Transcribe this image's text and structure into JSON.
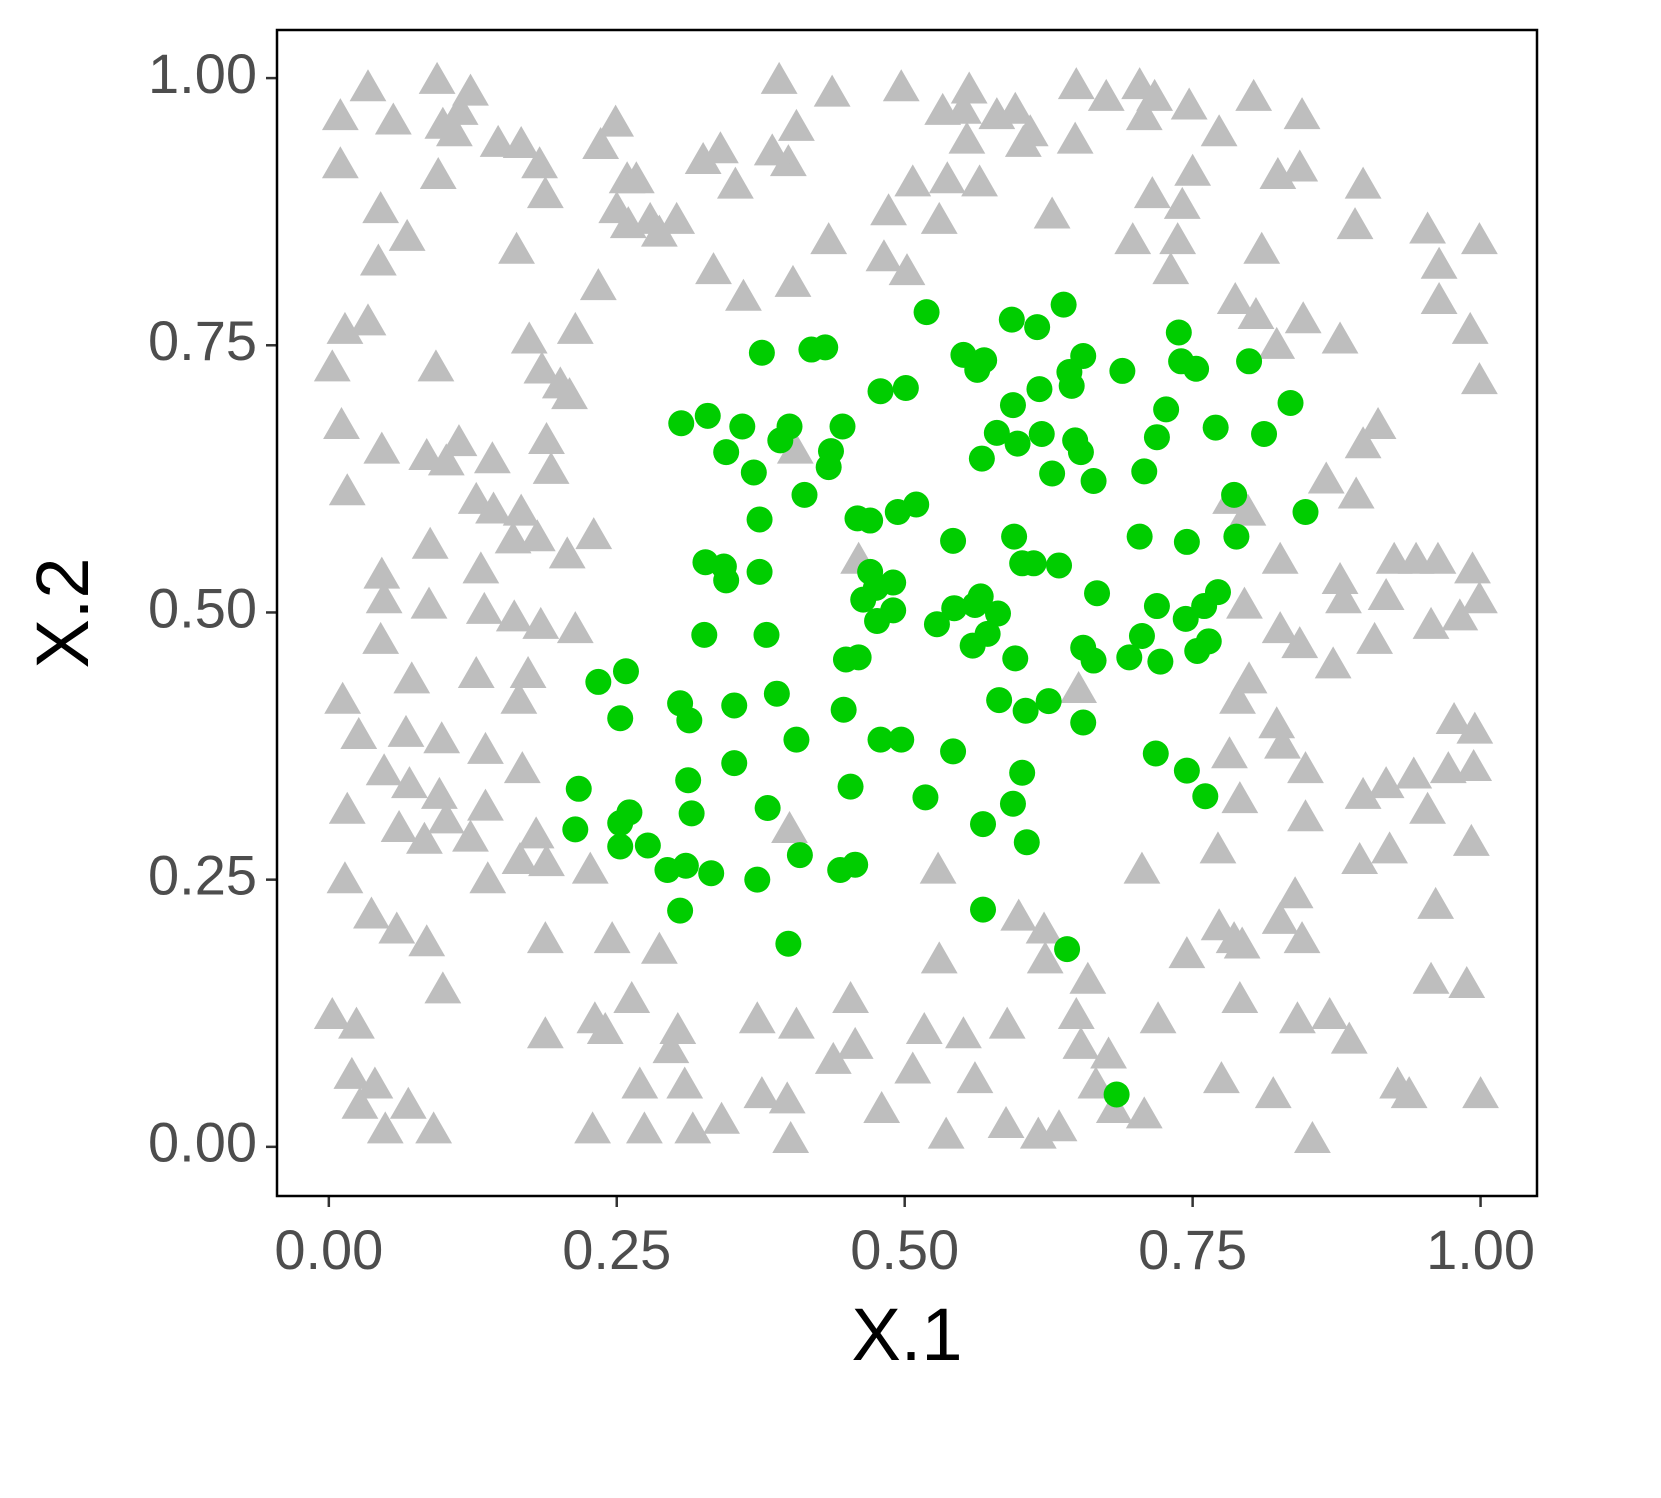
{
  "chart_data": {
    "type": "scatter",
    "x_label": "X.1",
    "y_label": "X.2",
    "xlim": [
      -0.045,
      1.049
    ],
    "ylim": [
      -0.046,
      1.045
    ],
    "xticks": [
      {
        "value": 0,
        "label": "0.00"
      },
      {
        "value": 0.25,
        "label": "0.25"
      },
      {
        "value": 0.5,
        "label": "0.50"
      },
      {
        "value": 0.75,
        "label": "0.75"
      },
      {
        "value": 1,
        "label": "1.00"
      }
    ],
    "yticks": [
      {
        "value": 0,
        "label": "0.00"
      },
      {
        "value": 0.25,
        "label": "0.25"
      },
      {
        "value": 0.5,
        "label": "0.50"
      },
      {
        "value": 0.75,
        "label": "0.75"
      },
      {
        "value": 1,
        "label": "1.00"
      }
    ],
    "grid": false,
    "series": [
      {
        "color": "#bebebe",
        "marker": "triangle",
        "x": [
          0.01,
          0.034,
          0.056,
          0.094,
          0.099,
          0.114,
          0.123,
          0.109,
          0.01,
          0.045,
          0.068,
          0.043,
          0.095,
          0.147,
          0.167,
          0.183,
          0.188,
          0.163,
          0.236,
          0.249,
          0.259,
          0.267,
          0.25,
          0.26,
          0.234,
          0.279,
          0.287,
          0.302,
          0.325,
          0.34,
          0.353,
          0.334,
          0.36,
          0.391,
          0.406,
          0.399,
          0.385,
          0.403,
          0.437,
          0.434,
          0.497,
          0.486,
          0.507,
          0.482,
          0.502,
          0.53,
          0.537,
          0.551,
          0.556,
          0.533,
          0.565,
          0.554,
          0.58,
          0.596,
          0.609,
          0.603,
          0.628,
          0.649,
          0.648,
          0.675,
          0.704,
          0.717,
          0.708,
          0.747,
          0.773,
          0.75,
          0.741,
          0.737,
          0.731,
          0.698,
          0.715,
          0.803,
          0.824,
          0.81,
          0.845,
          0.843,
          0.898,
          0.891,
          0.954,
          0.964,
          0.999,
          0.964,
          0.991,
          0.999,
          0.787,
          0.805,
          0.846,
          0.878,
          0.823,
          0.014,
          0.034,
          0.003,
          0.011,
          0.016,
          0.093,
          0.046,
          0.085,
          0.102,
          0.113,
          0.142,
          0.128,
          0.143,
          0.167,
          0.189,
          0.193,
          0.201,
          0.174,
          0.185,
          0.209,
          0.214,
          0.181,
          0.207,
          0.23,
          0.16,
          0.088,
          0.046,
          0.048,
          0.087,
          0.132,
          0.135,
          0.161,
          0.184,
          0.214,
          0.072,
          0.045,
          0.012,
          0.026,
          0.048,
          0.067,
          0.098,
          0.136,
          0.128,
          0.07,
          0.096,
          0.102,
          0.061,
          0.136,
          0.123,
          0.083,
          0.18,
          0.189,
          0.166,
          0.227,
          0.138,
          0.016,
          0.014,
          0.037,
          0.059,
          0.085,
          0.099,
          0.168,
          0.165,
          0.173,
          0.003,
          0.024,
          0.02,
          0.04,
          0.027,
          0.049,
          0.069,
          0.091,
          0.188,
          0.188,
          0.231,
          0.229,
          0.246,
          0.263,
          0.24,
          0.27,
          0.274,
          0.287,
          0.303,
          0.297,
          0.309,
          0.316,
          0.341,
          0.372,
          0.376,
          0.398,
          0.401,
          0.406,
          0.4,
          0.438,
          0.453,
          0.457,
          0.48,
          0.507,
          0.517,
          0.53,
          0.551,
          0.561,
          0.589,
          0.588,
          0.616,
          0.634,
          0.529,
          0.536,
          0.599,
          0.621,
          0.622,
          0.659,
          0.649,
          0.653,
          0.677,
          0.666,
          0.682,
          0.708,
          0.706,
          0.72,
          0.745,
          0.775,
          0.786,
          0.791,
          0.82,
          0.854,
          0.841,
          0.869,
          0.886,
          0.845,
          0.839,
          0.928,
          0.938,
          0.961,
          0.957,
          0.988,
          1.0,
          0.992,
          0.895,
          0.921,
          0.866,
          0.892,
          0.911,
          0.898,
          0.918,
          0.908,
          0.925,
          0.944,
          0.963,
          0.993,
          0.999,
          0.982,
          0.957,
          0.995,
          0.977,
          0.994,
          0.918,
          0.898,
          0.942,
          0.972,
          0.954,
          0.881,
          0.872,
          0.843,
          0.826,
          0.828,
          0.823,
          0.848,
          0.878,
          0.826,
          0.795,
          0.799,
          0.789,
          0.782,
          0.791,
          0.772,
          0.773,
          0.793,
          0.848,
          0.826,
          0.783,
          0.798,
          0.651,
          0.405,
          0.46
        ],
        "values": [
          0.964,
          0.991,
          0.96,
          0.998,
          0.956,
          0.969,
          0.987,
          0.949,
          0.919,
          0.877,
          0.851,
          0.828,
          0.909,
          0.939,
          0.938,
          0.919,
          0.891,
          0.839,
          0.937,
          0.958,
          0.905,
          0.905,
          0.877,
          0.863,
          0.805,
          0.867,
          0.855,
          0.867,
          0.923,
          0.933,
          0.9,
          0.82,
          0.795,
          0.998,
          0.954,
          0.921,
          0.931,
          0.808,
          0.986,
          0.848,
          0.991,
          0.875,
          0.902,
          0.832,
          0.819,
          0.867,
          0.905,
          0.97,
          0.989,
          0.969,
          0.902,
          0.942,
          0.965,
          0.97,
          0.949,
          0.939,
          0.872,
          0.993,
          0.942,
          0.982,
          0.993,
          0.982,
          0.964,
          0.974,
          0.949,
          0.912,
          0.881,
          0.848,
          0.82,
          0.848,
          0.891,
          0.982,
          0.909,
          0.839,
          0.965,
          0.916,
          0.9,
          0.862,
          0.858,
          0.825,
          0.848,
          0.792,
          0.764,
          0.717,
          0.792,
          0.778,
          0.774,
          0.755,
          0.75,
          0.764,
          0.772,
          0.729,
          0.675,
          0.613,
          0.729,
          0.652,
          0.646,
          0.641,
          0.659,
          0.643,
          0.605,
          0.596,
          0.594,
          0.661,
          0.633,
          0.713,
          0.755,
          0.727,
          0.703,
          0.764,
          0.57,
          0.554,
          0.572,
          0.568,
          0.563,
          0.535,
          0.512,
          0.507,
          0.54,
          0.502,
          0.495,
          0.488,
          0.484,
          0.437,
          0.474,
          0.418,
          0.385,
          0.351,
          0.387,
          0.381,
          0.371,
          0.442,
          0.339,
          0.329,
          0.306,
          0.298,
          0.318,
          0.289,
          0.287,
          0.292,
          0.266,
          0.268,
          0.259,
          0.25,
          0.315,
          0.25,
          0.217,
          0.203,
          0.191,
          0.147,
          0.353,
          0.418,
          0.442,
          0.123,
          0.114,
          0.067,
          0.058,
          0.039,
          0.016,
          0.039,
          0.016,
          0.194,
          0.105,
          0.119,
          0.016,
          0.194,
          0.138,
          0.109,
          0.058,
          0.016,
          0.184,
          0.109,
          0.091,
          0.058,
          0.016,
          0.025,
          0.119,
          0.049,
          0.044,
          0.007,
          0.114,
          0.297,
          0.081,
          0.138,
          0.095,
          0.035,
          0.072,
          0.109,
          0.175,
          0.105,
          0.063,
          0.114,
          0.021,
          0.011,
          0.018,
          0.259,
          0.011,
          0.215,
          0.203,
          0.175,
          0.156,
          0.123,
          0.095,
          0.086,
          0.058,
          0.035,
          0.03,
          0.259,
          0.119,
          0.18,
          0.063,
          0.194,
          0.138,
          0.049,
          0.007,
          0.119,
          0.123,
          0.1,
          0.194,
          0.236,
          0.058,
          0.049,
          0.226,
          0.156,
          0.152,
          0.049,
          0.285,
          0.268,
          0.278,
          0.624,
          0.61,
          0.675,
          0.657,
          0.515,
          0.474,
          0.549,
          0.549,
          0.549,
          0.54,
          0.512,
          0.496,
          0.488,
          0.39,
          0.399,
          0.355,
          0.339,
          0.329,
          0.348,
          0.353,
          0.315,
          0.512,
          0.451,
          0.47,
          0.484,
          0.376,
          0.395,
          0.353,
          0.53,
          0.549,
          0.507,
          0.437,
          0.418,
          0.367,
          0.325,
          0.278,
          0.206,
          0.189,
          0.308,
          0.212,
          0.605,
          0.594,
          0.428,
          0.652,
          0.549
        ]
      },
      {
        "color": "#00cd00",
        "marker": "circle",
        "x": [
          0.376,
          0.419,
          0.431,
          0.519,
          0.593,
          0.615,
          0.638,
          0.551,
          0.563,
          0.569,
          0.655,
          0.643,
          0.689,
          0.738,
          0.74,
          0.753,
          0.799,
          0.835,
          0.812,
          0.77,
          0.727,
          0.719,
          0.708,
          0.786,
          0.848,
          0.788,
          0.704,
          0.745,
          0.772,
          0.76,
          0.744,
          0.719,
          0.706,
          0.695,
          0.722,
          0.764,
          0.754,
          0.718,
          0.745,
          0.761,
          0.667,
          0.664,
          0.653,
          0.648,
          0.645,
          0.628,
          0.617,
          0.619,
          0.594,
          0.598,
          0.58,
          0.567,
          0.595,
          0.602,
          0.612,
          0.634,
          0.566,
          0.561,
          0.581,
          0.543,
          0.528,
          0.572,
          0.559,
          0.596,
          0.605,
          0.625,
          0.582,
          0.655,
          0.664,
          0.655,
          0.542,
          0.51,
          0.494,
          0.459,
          0.47,
          0.47,
          0.475,
          0.49,
          0.464,
          0.49,
          0.476,
          0.449,
          0.46,
          0.447,
          0.479,
          0.497,
          0.542,
          0.518,
          0.568,
          0.594,
          0.602,
          0.606,
          0.568,
          0.641,
          0.453,
          0.444,
          0.457,
          0.501,
          0.479,
          0.446,
          0.436,
          0.434,
          0.413,
          0.4,
          0.392,
          0.359,
          0.345,
          0.369,
          0.374,
          0.374,
          0.327,
          0.343,
          0.345,
          0.38,
          0.326,
          0.352,
          0.389,
          0.406,
          0.352,
          0.306,
          0.329,
          0.305,
          0.313,
          0.312,
          0.315,
          0.381,
          0.409,
          0.372,
          0.332,
          0.31,
          0.294,
          0.305,
          0.399,
          0.234,
          0.258,
          0.253,
          0.217,
          0.214,
          0.253,
          0.261,
          0.253,
          0.277,
          0.684
        ],
        "values": [
          0.743,
          0.746,
          0.748,
          0.781,
          0.774,
          0.767,
          0.788,
          0.741,
          0.727,
          0.736,
          0.74,
          0.725,
          0.726,
          0.762,
          0.735,
          0.728,
          0.735,
          0.696,
          0.667,
          0.673,
          0.69,
          0.664,
          0.632,
          0.61,
          0.594,
          0.571,
          0.571,
          0.566,
          0.519,
          0.506,
          0.494,
          0.506,
          0.478,
          0.458,
          0.454,
          0.473,
          0.464,
          0.368,
          0.352,
          0.328,
          0.518,
          0.623,
          0.65,
          0.661,
          0.712,
          0.63,
          0.709,
          0.667,
          0.694,
          0.658,
          0.668,
          0.644,
          0.571,
          0.546,
          0.546,
          0.544,
          0.515,
          0.507,
          0.499,
          0.504,
          0.489,
          0.48,
          0.469,
          0.457,
          0.408,
          0.417,
          0.418,
          0.467,
          0.455,
          0.397,
          0.567,
          0.601,
          0.594,
          0.588,
          0.586,
          0.538,
          0.523,
          0.528,
          0.512,
          0.502,
          0.492,
          0.456,
          0.458,
          0.409,
          0.381,
          0.381,
          0.37,
          0.327,
          0.302,
          0.321,
          0.35,
          0.285,
          0.222,
          0.185,
          0.337,
          0.259,
          0.264,
          0.71,
          0.707,
          0.674,
          0.651,
          0.636,
          0.61,
          0.674,
          0.661,
          0.674,
          0.65,
          0.631,
          0.587,
          0.538,
          0.547,
          0.543,
          0.53,
          0.479,
          0.479,
          0.413,
          0.424,
          0.381,
          0.359,
          0.677,
          0.684,
          0.415,
          0.399,
          0.343,
          0.312,
          0.317,
          0.273,
          0.25,
          0.256,
          0.263,
          0.259,
          0.221,
          0.19,
          0.435,
          0.445,
          0.401,
          0.335,
          0.297,
          0.303,
          0.313,
          0.281,
          0.282,
          0.049
        ]
      }
    ]
  }
}
